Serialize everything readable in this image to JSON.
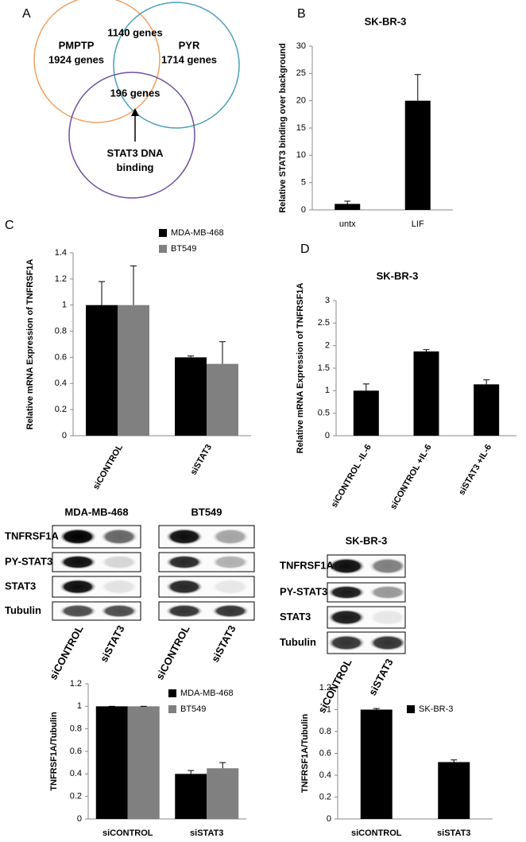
{
  "panels": [
    "A",
    "B",
    "C",
    "D"
  ],
  "venn": {
    "sets": [
      {
        "name": "PMPTP",
        "count": "1924 genes"
      },
      {
        "name": "PYR",
        "count": "1714 genes"
      },
      {
        "name": "STAT3 DNA binding"
      }
    ],
    "overlaps": [
      "1140 genes",
      "196 genes"
    ]
  },
  "chart_data": [
    {
      "type": "bar",
      "title": "SK-BR-3",
      "ylabel": "Relative STAT3 binding over background",
      "categories": [
        "untx",
        "LIF"
      ],
      "series": [
        {
          "name": null,
          "color": "#000000",
          "values": [
            1.1,
            20
          ],
          "errors": [
            0.5,
            4.8
          ]
        }
      ],
      "ylim": [
        0,
        30
      ],
      "yticks": [
        0,
        5,
        10,
        15,
        20,
        25,
        30
      ]
    },
    {
      "type": "bar",
      "ylabel": "Relative mRNA Expression of TNFRSF1A",
      "categories": [
        "siCONTROL",
        "siSTAT3"
      ],
      "series": [
        {
          "name": "MDA-MB-468",
          "color": "#000000",
          "values": [
            1,
            0.6
          ],
          "errors": [
            0.18,
            0.01
          ]
        },
        {
          "name": "BT549",
          "color": "#808080",
          "values": [
            1,
            0.55
          ],
          "errors": [
            0.3,
            0.17
          ]
        }
      ],
      "ylim": [
        0,
        1.4
      ],
      "yticks": [
        0,
        0.2,
        0.4,
        0.6,
        0.8,
        1,
        1.2,
        1.4
      ],
      "legend": "top-right"
    },
    {
      "type": "bar",
      "title": "SK-BR-3",
      "ylabel": "Relative mRNA Expression of TNFRSF1A",
      "categories": [
        "siCONTROL -IL-6",
        "siCONTROL +IL-6",
        "siSTAT3 +IL-6"
      ],
      "series": [
        {
          "name": null,
          "color": "#000000",
          "values": [
            1,
            1.87,
            1.14
          ],
          "errors": [
            0.15,
            0.04,
            0.1
          ]
        }
      ],
      "ylim": [
        0,
        3
      ],
      "yticks": [
        0,
        0.5,
        1,
        1.5,
        2,
        2.5,
        3
      ]
    },
    {
      "type": "bar",
      "ylabel": "TNFRSF1A/Tubulin",
      "categories": [
        "siCONTROL",
        "siSTAT3"
      ],
      "series": [
        {
          "name": "MDA-MB-468",
          "color": "#000000",
          "values": [
            1,
            0.4
          ],
          "errors": [
            0,
            0.03
          ]
        },
        {
          "name": "BT549",
          "color": "#808080",
          "values": [
            1,
            0.45
          ],
          "errors": [
            0,
            0.05
          ]
        }
      ],
      "ylim": [
        0,
        1.2
      ],
      "yticks": [
        0,
        0.2,
        0.4,
        0.6,
        0.8,
        1,
        1.2
      ],
      "legend": "top-right"
    },
    {
      "type": "bar",
      "ylabel": "TNFRSF1A/Tubulin",
      "categories": [
        "siCONTROL",
        "siSTAT3"
      ],
      "series": [
        {
          "name": "SK-BR-3",
          "color": "#000000",
          "values": [
            1,
            0.52
          ],
          "errors": [
            0.01,
            0.02
          ]
        }
      ],
      "ylim": [
        0,
        1.2
      ],
      "yticks": [
        0,
        0.2,
        0.4,
        0.6,
        0.8,
        1,
        1.2
      ],
      "legend": "top-right"
    }
  ],
  "blots": [
    {
      "title": "MDA-MB-468",
      "rows": [
        "TNFRSF1A",
        "PY-STAT3",
        "STAT3",
        "Tubulin"
      ],
      "lanes": [
        "siCONTROL",
        "siSTAT3"
      ]
    },
    {
      "title": "BT549",
      "lanes": [
        "siCONTROL",
        "siSTAT3"
      ]
    },
    {
      "title": "SK-BR-3",
      "rows": [
        "TNFRSF1A",
        "PY-STAT3",
        "STAT3",
        "Tubulin"
      ],
      "lanes": [
        "siCONTROL",
        "siSTAT3"
      ]
    }
  ]
}
